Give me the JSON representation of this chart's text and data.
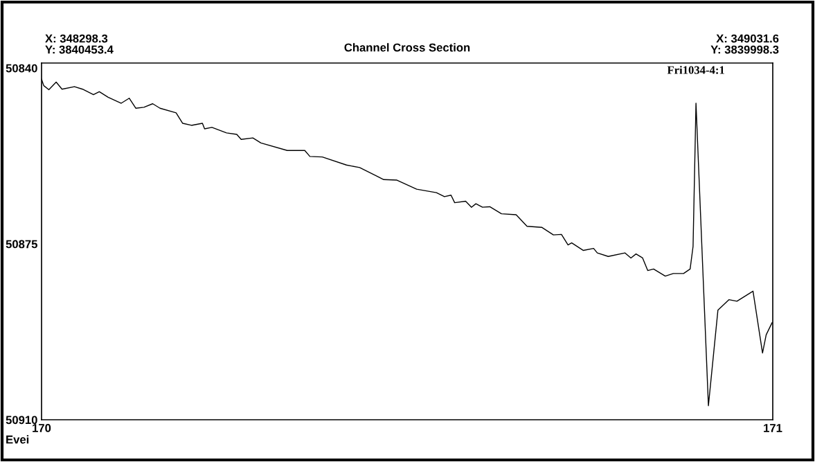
{
  "chart_data": {
    "type": "line",
    "title": "Channel Cross Section",
    "x": [
      170.0,
      170.003,
      170.01,
      170.02,
      170.028,
      170.045,
      170.056,
      170.071,
      170.079,
      170.091,
      170.109,
      170.12,
      170.129,
      170.14,
      170.152,
      170.162,
      170.184,
      170.193,
      170.205,
      170.22,
      170.223,
      170.233,
      170.253,
      170.267,
      170.273,
      170.289,
      170.3,
      170.336,
      170.36,
      170.367,
      170.384,
      170.417,
      170.435,
      170.468,
      170.486,
      170.513,
      170.54,
      170.551,
      170.56,
      170.565,
      170.58,
      170.588,
      170.594,
      170.603,
      170.613,
      170.629,
      170.649,
      170.664,
      170.684,
      170.7,
      170.711,
      170.72,
      170.725,
      170.741,
      170.755,
      170.76,
      170.775,
      170.798,
      170.806,
      170.813,
      170.822,
      170.829,
      170.837,
      170.853,
      170.864,
      170.878,
      170.887,
      170.891,
      170.895,
      170.912,
      170.925,
      170.94,
      170.951,
      170.973,
      170.986,
      170.991,
      170.999
    ],
    "series": [
      {
        "color": "#000000",
        "values": [
          50842.2,
          50843.5,
          50844.3,
          50842.8,
          50844.2,
          50843.7,
          50844.2,
          50845.3,
          50844.7,
          50845.8,
          50847.0,
          50846.0,
          50848.0,
          50847.8,
          50847.1,
          50848.0,
          50848.9,
          50851.0,
          50851.4,
          50851.0,
          50852.1,
          50851.8,
          50852.9,
          50853.2,
          50854.2,
          50853.9,
          50854.9,
          50856.4,
          50856.4,
          50857.6,
          50857.7,
          50859.3,
          50859.8,
          50862.2,
          50862.3,
          50864.1,
          50864.8,
          50865.6,
          50865.3,
          50866.8,
          50866.5,
          50867.7,
          50867.0,
          50867.7,
          50867.6,
          50869.0,
          50869.2,
          50871.5,
          50871.7,
          50873.2,
          50873.1,
          50875.2,
          50874.8,
          50876.3,
          50875.9,
          50876.8,
          50877.5,
          50876.8,
          50877.8,
          50877.0,
          50877.8,
          50880.3,
          50880.0,
          50881.4,
          50880.9,
          50880.9,
          50880.0,
          50875.5,
          50847.0,
          50907.2,
          50888.2,
          50886.1,
          50886.4,
          50884.4,
          50896.7,
          50893.1,
          50890.7
        ]
      }
    ],
    "xlim": [
      170,
      171
    ],
    "xticks": [
      170,
      171
    ],
    "ylim": [
      50910,
      50839
    ],
    "yticks": [
      50840,
      50875,
      50910
    ],
    "grid": false,
    "legend": false,
    "marker": "none",
    "line_style": "solid",
    "annotations": [
      "X: 348298.3",
      "Y: 3840453.4",
      "X: 349031.6",
      "Y: 3839998.3",
      "Evei",
      {
        "text": "Fri1034-4:1",
        "x": 170.895,
        "y": 50847.0
      }
    ]
  }
}
